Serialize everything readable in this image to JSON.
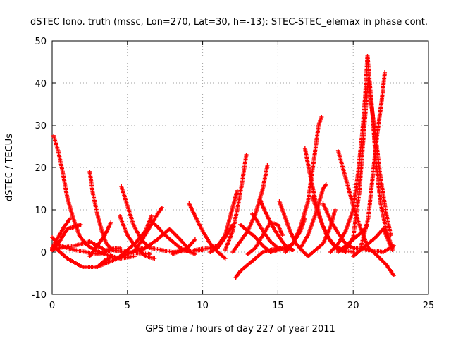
{
  "chart_data": {
    "type": "scatter",
    "title": "dSTEC Iono. truth (mssc, Lon=270, Lat=30, h=-13): STEC-STEC_elemax in phase cont.",
    "xlabel": "GPS time / hours of day 227 of year 2011",
    "ylabel": "dSTEC  / TECUs",
    "xlim": [
      0,
      25
    ],
    "ylim": [
      -10,
      50
    ],
    "xticks": [
      0,
      5,
      10,
      15,
      20,
      25
    ],
    "yticks": [
      -10,
      0,
      10,
      20,
      30,
      40,
      50
    ],
    "grid": true,
    "marker": "+",
    "color": "#ff0000",
    "series": [
      {
        "values": [
          [
            0.0,
            3.5
          ],
          [
            0.5,
            1.5
          ],
          [
            1.5,
            0.5
          ],
          [
            3.0,
            -0.5
          ],
          [
            4.0,
            0.5
          ],
          [
            5.0,
            0.0
          ]
        ]
      },
      {
        "values": [
          [
            0.0,
            0.5
          ],
          [
            0.5,
            1.0
          ],
          [
            1.5,
            1.5
          ],
          [
            2.5,
            2.5
          ],
          [
            3.5,
            0.5
          ],
          [
            4.5,
            1.0
          ]
        ]
      },
      {
        "values": [
          [
            0.1,
            27.5
          ],
          [
            0.4,
            24.0
          ],
          [
            0.7,
            19.0
          ],
          [
            1.0,
            13.0
          ],
          [
            1.4,
            8.0
          ],
          [
            1.8,
            4.0
          ],
          [
            2.2,
            2.0
          ],
          [
            2.8,
            0.5
          ],
          [
            3.5,
            -0.5
          ],
          [
            4.5,
            -1.5
          ],
          [
            5.5,
            -1.0
          ]
        ]
      },
      {
        "values": [
          [
            0.0,
            0.5
          ],
          [
            0.5,
            2.5
          ],
          [
            1.0,
            5.5
          ],
          [
            1.5,
            6.0
          ],
          [
            1.9,
            6.5
          ]
        ]
      },
      {
        "values": [
          [
            0.2,
            1.0
          ],
          [
            1.0,
            -1.5
          ],
          [
            2.0,
            -3.5
          ],
          [
            3.0,
            -3.5
          ],
          [
            4.0,
            -2.0
          ],
          [
            5.0,
            -0.5
          ],
          [
            6.0,
            1.0
          ]
        ]
      },
      {
        "values": [
          [
            0.0,
            1.0
          ],
          [
            0.4,
            3.5
          ],
          [
            0.8,
            6.0
          ],
          [
            1.2,
            8.0
          ]
        ]
      },
      {
        "values": [
          [
            2.5,
            19.0
          ],
          [
            2.7,
            14.0
          ],
          [
            3.0,
            9.0
          ],
          [
            3.3,
            5.0
          ],
          [
            3.6,
            2.0
          ],
          [
            4.0,
            0.5
          ],
          [
            5.0,
            0.0
          ],
          [
            6.5,
            -0.5
          ]
        ]
      },
      {
        "values": [
          [
            2.5,
            -1.0
          ],
          [
            3.0,
            1.5
          ],
          [
            3.5,
            4.0
          ],
          [
            3.9,
            7.0
          ]
        ]
      },
      {
        "values": [
          [
            3.0,
            -3.5
          ],
          [
            3.5,
            -2.0
          ],
          [
            4.0,
            -1.0
          ]
        ]
      },
      {
        "values": [
          [
            4.6,
            15.5
          ],
          [
            5.0,
            11.0
          ],
          [
            5.4,
            6.5
          ],
          [
            5.9,
            3.0
          ],
          [
            6.5,
            1.0
          ],
          [
            8.0,
            0.0
          ],
          [
            10.0,
            0.5
          ]
        ]
      },
      {
        "values": [
          [
            4.5,
            8.5
          ],
          [
            5.0,
            4.0
          ],
          [
            5.5,
            1.5
          ],
          [
            6.2,
            -1.0
          ],
          [
            6.8,
            -1.5
          ]
        ]
      },
      {
        "values": [
          [
            4.5,
            -1.0
          ],
          [
            5.0,
            0.5
          ],
          [
            5.5,
            2.0
          ],
          [
            6.2,
            5.0
          ],
          [
            6.6,
            8.5
          ]
        ]
      },
      {
        "values": [
          [
            5.5,
            0.5
          ],
          [
            6.0,
            3.0
          ],
          [
            6.5,
            6.0
          ],
          [
            7.0,
            9.0
          ],
          [
            7.3,
            10.5
          ]
        ]
      },
      {
        "values": [
          [
            6.5,
            7.5
          ],
          [
            7.0,
            6.0
          ],
          [
            7.5,
            4.0
          ],
          [
            8.0,
            2.5
          ],
          [
            8.5,
            1.0
          ],
          [
            9.5,
            -0.5
          ]
        ]
      },
      {
        "values": [
          [
            6.0,
            0.5
          ],
          [
            7.0,
            3.0
          ],
          [
            7.8,
            5.5
          ],
          [
            8.5,
            3.0
          ],
          [
            9.0,
            1.0
          ]
        ]
      },
      {
        "values": [
          [
            8.0,
            -0.5
          ],
          [
            9.0,
            1.0
          ],
          [
            9.5,
            3.0
          ]
        ]
      },
      {
        "values": [
          [
            9.1,
            11.5
          ],
          [
            9.5,
            8.5
          ],
          [
            10.0,
            5.0
          ],
          [
            10.5,
            2.0
          ],
          [
            11.0,
            0.0
          ],
          [
            11.5,
            -1.5
          ]
        ]
      },
      {
        "values": [
          [
            9.5,
            0.5
          ],
          [
            10.5,
            1.0
          ],
          [
            11.0,
            1.5
          ],
          [
            11.5,
            4.0
          ],
          [
            11.8,
            8.0
          ],
          [
            12.1,
            12.0
          ],
          [
            12.3,
            14.5
          ]
        ]
      },
      {
        "values": [
          [
            10.5,
            0.0
          ],
          [
            11.0,
            1.0
          ],
          [
            11.5,
            3.5
          ],
          [
            12.0,
            6.5
          ]
        ]
      },
      {
        "values": [
          [
            12.2,
            -6.0
          ],
          [
            12.5,
            -4.5
          ],
          [
            13.0,
            -3.0
          ],
          [
            13.5,
            -1.5
          ],
          [
            14.0,
            0.0
          ],
          [
            14.5,
            0.5
          ],
          [
            15.0,
            1.0
          ]
        ]
      },
      {
        "values": [
          [
            11.5,
            0.5
          ],
          [
            12.0,
            5.0
          ],
          [
            12.3,
            10.0
          ],
          [
            12.6,
            16.0
          ],
          [
            12.9,
            23.0
          ]
        ]
      },
      {
        "values": [
          [
            12.0,
            0.0
          ],
          [
            12.5,
            2.5
          ],
          [
            13.0,
            5.0
          ],
          [
            13.5,
            9.0
          ],
          [
            14.0,
            15.0
          ],
          [
            14.3,
            20.5
          ]
        ]
      },
      {
        "values": [
          [
            12.5,
            6.5
          ],
          [
            13.0,
            5.0
          ],
          [
            13.5,
            3.5
          ],
          [
            14.0,
            1.5
          ],
          [
            14.5,
            0.0
          ]
        ]
      },
      {
        "values": [
          [
            13.0,
            -0.5
          ],
          [
            13.5,
            1.0
          ],
          [
            14.0,
            4.0
          ],
          [
            14.5,
            7.0
          ],
          [
            15.0,
            6.5
          ],
          [
            15.3,
            4.0
          ]
        ]
      },
      {
        "values": [
          [
            13.3,
            9.0
          ],
          [
            13.6,
            7.5
          ],
          [
            14.0,
            5.0
          ],
          [
            14.5,
            2.5
          ],
          [
            15.0,
            1.0
          ],
          [
            16.0,
            0.5
          ]
        ]
      },
      {
        "values": [
          [
            13.8,
            12.5
          ],
          [
            14.1,
            10.0
          ],
          [
            14.5,
            7.0
          ],
          [
            15.0,
            4.0
          ],
          [
            15.5,
            1.5
          ],
          [
            16.0,
            0.5
          ]
        ]
      },
      {
        "values": [
          [
            14.5,
            0.0
          ],
          [
            15.0,
            0.5
          ],
          [
            15.5,
            1.0
          ],
          [
            16.0,
            2.0
          ],
          [
            16.5,
            5.0
          ],
          [
            16.8,
            8.0
          ]
        ]
      },
      {
        "values": [
          [
            15.1,
            12.0
          ],
          [
            15.4,
            9.0
          ],
          [
            15.8,
            5.0
          ],
          [
            16.2,
            2.0
          ],
          [
            16.7,
            0.0
          ],
          [
            17.0,
            -1.0
          ]
        ]
      },
      {
        "values": [
          [
            15.5,
            0.0
          ],
          [
            16.0,
            2.0
          ],
          [
            16.5,
            6.0
          ],
          [
            17.0,
            12.0
          ],
          [
            17.4,
            22.0
          ],
          [
            17.7,
            30.0
          ],
          [
            17.9,
            32.0
          ]
        ]
      },
      {
        "values": [
          [
            16.5,
            1.0
          ],
          [
            17.0,
            4.0
          ],
          [
            17.5,
            9.0
          ],
          [
            18.0,
            15.0
          ],
          [
            18.2,
            16.0
          ]
        ]
      },
      {
        "values": [
          [
            16.8,
            24.5
          ],
          [
            17.1,
            19.0
          ],
          [
            17.5,
            12.0
          ],
          [
            17.9,
            7.0
          ],
          [
            18.3,
            3.5
          ],
          [
            18.8,
            1.5
          ],
          [
            19.5,
            0.0
          ]
        ]
      },
      {
        "values": [
          [
            17.3,
            13.0
          ],
          [
            17.6,
            10.0
          ],
          [
            18.0,
            6.0
          ],
          [
            18.5,
            2.5
          ],
          [
            19.0,
            0.5
          ],
          [
            20.0,
            0.0
          ]
        ]
      },
      {
        "values": [
          [
            17.0,
            -1.0
          ],
          [
            17.5,
            0.5
          ],
          [
            18.0,
            2.0
          ],
          [
            18.5,
            6.0
          ],
          [
            18.8,
            10.0
          ]
        ]
      },
      {
        "values": [
          [
            18.0,
            11.5
          ],
          [
            18.5,
            7.5
          ],
          [
            19.0,
            4.5
          ],
          [
            19.5,
            2.0
          ],
          [
            20.0,
            1.0
          ],
          [
            21.0,
            0.5
          ],
          [
            22.0,
            0.0
          ],
          [
            22.7,
            1.5
          ]
        ]
      },
      {
        "values": [
          [
            19.0,
            24.0
          ],
          [
            19.5,
            17.5
          ],
          [
            20.0,
            11.0
          ],
          [
            20.5,
            5.5
          ],
          [
            21.0,
            1.0
          ],
          [
            21.5,
            -0.5
          ],
          [
            22.2,
            -3.0
          ],
          [
            22.7,
            -5.5
          ]
        ]
      },
      {
        "values": [
          [
            18.5,
            0.0
          ],
          [
            19.0,
            2.0
          ],
          [
            19.5,
            5.0
          ],
          [
            20.0,
            10.0
          ],
          [
            20.3,
            18.0
          ],
          [
            20.6,
            28.0
          ],
          [
            20.8,
            37.0
          ],
          [
            20.95,
            46.5
          ],
          [
            21.1,
            40.0
          ],
          [
            21.3,
            32.0
          ],
          [
            21.5,
            22.0
          ],
          [
            21.8,
            12.0
          ],
          [
            22.2,
            5.0
          ],
          [
            22.6,
            1.0
          ]
        ]
      },
      {
        "values": [
          [
            19.5,
            0.5
          ],
          [
            20.0,
            3.5
          ],
          [
            20.4,
            14.0
          ],
          [
            20.7,
            28.0
          ],
          [
            21.0,
            41.0
          ],
          [
            21.2,
            35.0
          ],
          [
            21.5,
            27.0
          ],
          [
            21.8,
            18.0
          ],
          [
            22.2,
            9.0
          ],
          [
            22.5,
            4.0
          ]
        ]
      },
      {
        "values": [
          [
            20.5,
            1.0
          ],
          [
            21.0,
            8.0
          ],
          [
            21.3,
            18.0
          ],
          [
            21.6,
            28.0
          ],
          [
            21.9,
            36.0
          ],
          [
            22.1,
            42.5
          ]
        ]
      },
      {
        "values": [
          [
            19.0,
            0.0
          ],
          [
            19.5,
            1.5
          ],
          [
            20.0,
            3.0
          ],
          [
            20.5,
            4.5
          ],
          [
            20.9,
            6.0
          ]
        ]
      },
      {
        "values": [
          [
            20.0,
            -1.0
          ],
          [
            20.5,
            0.5
          ],
          [
            21.0,
            2.0
          ],
          [
            21.5,
            3.5
          ],
          [
            22.0,
            5.5
          ],
          [
            22.6,
            0.5
          ]
        ]
      }
    ]
  }
}
